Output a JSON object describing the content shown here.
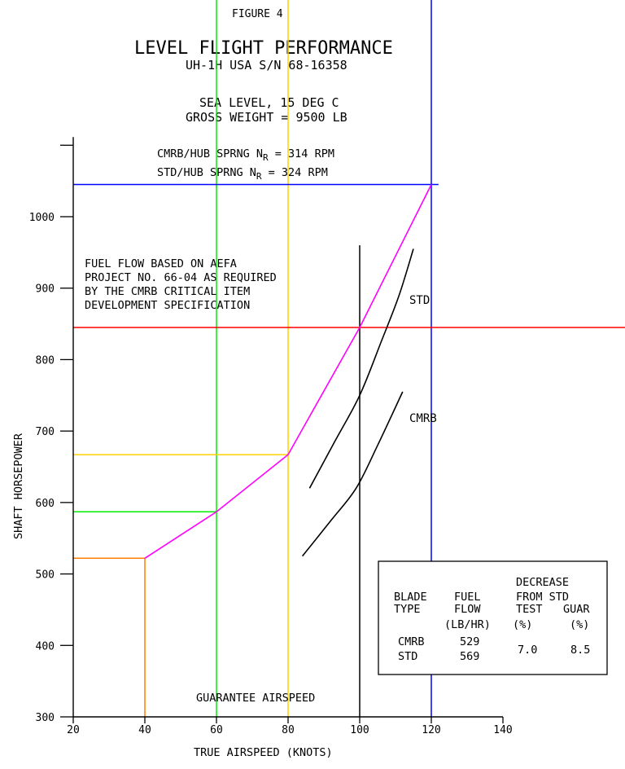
{
  "figure_label": "FIGURE 4",
  "chart_data": {
    "type": "line",
    "title": "LEVEL FLIGHT PERFORMANCE",
    "subtitle": "UH-1H USA S/N 68-16358",
    "conditions": [
      "SEA LEVEL, 15 DEG C",
      "GROSS WEIGHT = 9500 LB"
    ],
    "rotor_speeds": {
      "line1": {
        "prefix": "CMRB/HUB SPRNG N",
        "sub": "R",
        "suffix": " = 314 RPM"
      },
      "line2": {
        "prefix": "STD/HUB SPRNG N",
        "sub": "R",
        "suffix": " = 324 RPM"
      }
    },
    "xlabel": "TRUE AIRSPEED (KNOTS)",
    "ylabel": "SHAFT HORSEPOWER",
    "xlim": [
      20,
      140
    ],
    "ylim": [
      300,
      1100
    ],
    "xticks": [
      20,
      40,
      60,
      80,
      100,
      120,
      140
    ],
    "xtick_labels": [
      "20",
      "40",
      "60",
      "80",
      "100",
      "120",
      "140"
    ],
    "yticks": [
      300,
      400,
      500,
      600,
      700,
      800,
      900,
      1000
    ],
    "ytick_labels": [
      "300",
      "400",
      "500",
      "600",
      "700",
      "800",
      "900",
      "1000"
    ],
    "grid": false,
    "note": [
      "FUEL FLOW BASED ON AEFA",
      "PROJECT NO. 66-04 AS REQUIRED",
      "BY THE CMRB CRITICAL ITEM",
      "DEVELOPMENT SPECIFICATION"
    ],
    "series": [
      {
        "name": "STD",
        "color": "#000000",
        "x": [
          86,
          93,
          100,
          106,
          111,
          115
        ],
        "y": [
          620,
          685,
          750,
          825,
          890,
          955
        ]
      },
      {
        "name": "CMRB",
        "color": "#000000",
        "x": [
          84,
          92,
          99,
          105,
          112
        ],
        "y": [
          525,
          575,
          620,
          680,
          755
        ]
      },
      {
        "name": "",
        "color": "#ff00ff",
        "x": [
          40,
          60,
          80,
          100,
          120
        ],
        "y": [
          522,
          587,
          667,
          845,
          1045
        ]
      }
    ],
    "reference_lines": {
      "vertical": [
        {
          "x": 40,
          "y_top": 522,
          "color": "#ff8000"
        },
        {
          "x": 60,
          "y_top": 1150,
          "color": "#00ee00"
        },
        {
          "x": 80,
          "y_top": 1150,
          "color": "#ffd000"
        },
        {
          "x": 100,
          "y_bottom": 300,
          "y_top": 960,
          "color": "#000000"
        },
        {
          "x": 120,
          "y_top": 1150,
          "color": "#0000ff"
        }
      ],
      "horizontal": [
        {
          "y": 522,
          "x_to": 40,
          "color": "#ff8000"
        },
        {
          "y": 587,
          "x_to": 60,
          "color": "#00ee00"
        },
        {
          "y": 667,
          "x_to": 80,
          "color": "#ffd000"
        },
        {
          "y": 845,
          "x_to": "right-edge",
          "color": "#ff0000"
        },
        {
          "y": 1045,
          "x_to": 122,
          "color": "#0000ff"
        }
      ]
    },
    "guarantee_label": "GUARANTEE AIRSPEED",
    "table": {
      "headers": [
        [
          "",
          "BLADE",
          "TYPE"
        ],
        [
          "",
          "FUEL",
          "FLOW",
          "(LB/HR)"
        ],
        [
          "DECREASE",
          "FROM STD",
          "TEST",
          "(%)"
        ],
        [
          "",
          "",
          "GUAR",
          "(%)"
        ]
      ],
      "rows": [
        {
          "blade": "CMRB",
          "fuel_flow": "529"
        },
        {
          "blade": "STD",
          "fuel_flow": "569"
        }
      ],
      "decrease_test": "7.0",
      "decrease_guar": "8.5"
    }
  }
}
